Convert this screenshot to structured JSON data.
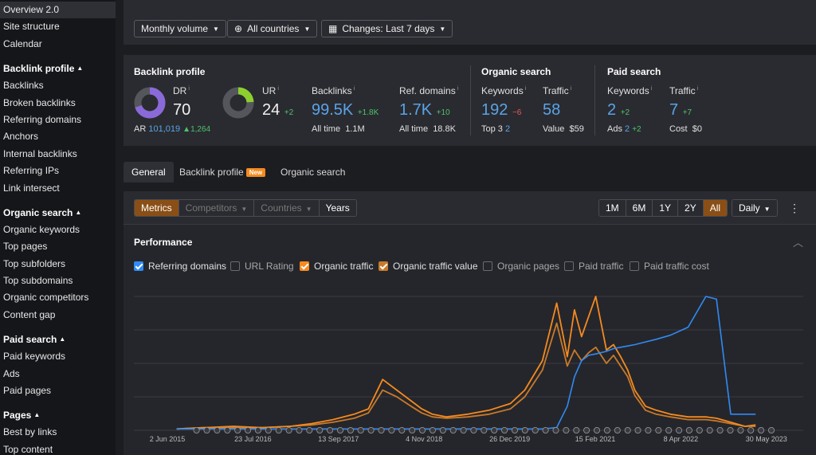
{
  "sidebar": {
    "top_items": [
      {
        "label": "Overview 2.0",
        "active": true
      },
      {
        "label": "Site structure"
      },
      {
        "label": "Calendar"
      }
    ],
    "sections": [
      {
        "title": "Backlink profile",
        "items": [
          "Backlinks",
          "Broken backlinks",
          "Referring domains",
          "Anchors",
          "Internal backlinks",
          "Referring IPs",
          "Link intersect"
        ]
      },
      {
        "title": "Organic search",
        "items": [
          "Organic keywords",
          "Top pages",
          "Top subfolders",
          "Top subdomains",
          "Organic competitors",
          "Content gap"
        ]
      },
      {
        "title": "Paid search",
        "items": [
          "Paid keywords",
          "Ads",
          "Paid pages"
        ]
      },
      {
        "title": "Pages",
        "items": [
          "Best by links",
          "Top content"
        ]
      }
    ]
  },
  "filters": {
    "volume": "Monthly volume",
    "countries": "All countries",
    "changes": "Changes: Last 7 days"
  },
  "backlink_profile": {
    "title": "Backlink profile",
    "dr_label": "DR",
    "dr_value": "70",
    "dr_fill": 0.7,
    "ar_label": "AR",
    "ar_value": "101,019",
    "ar_delta": "▲1,264",
    "ur_label": "UR",
    "ur_value": "24",
    "ur_delta": "+2",
    "ur_fill": 0.24,
    "backlinks_label": "Backlinks",
    "backlinks_value": "99.5K",
    "backlinks_delta": "+1.8K",
    "backlinks_alltime_label": "All time",
    "backlinks_alltime": "1.1M",
    "refdomains_label": "Ref. domains",
    "refdomains_value": "1.7K",
    "refdomains_delta": "+10",
    "refdomains_alltime_label": "All time",
    "refdomains_alltime": "18.8K"
  },
  "organic_search": {
    "title": "Organic search",
    "keywords_label": "Keywords",
    "keywords_value": "192",
    "keywords_delta": "−6",
    "top3_label": "Top 3",
    "top3_value": "2",
    "traffic_label": "Traffic",
    "traffic_value": "58",
    "value_label": "Value",
    "value_value": "$59"
  },
  "paid_search": {
    "title": "Paid search",
    "keywords_label": "Keywords",
    "keywords_value": "2",
    "keywords_delta": "+2",
    "ads_label": "Ads",
    "ads_value": "2",
    "ads_delta": "+2",
    "traffic_label": "Traffic",
    "traffic_value": "7",
    "traffic_delta": "+7",
    "cost_label": "Cost",
    "cost_value": "$0"
  },
  "tabs": {
    "general": "General",
    "backlink_profile": "Backlink profile",
    "new_badge": "New",
    "organic_search": "Organic search"
  },
  "controls": {
    "metrics": "Metrics",
    "competitors": "Competitors",
    "countries": "Countries",
    "years": "Years",
    "ranges": [
      "1M",
      "6M",
      "1Y",
      "2Y",
      "All"
    ],
    "active_range": "All",
    "granularity": "Daily"
  },
  "performance": {
    "title": "Performance",
    "legend": [
      {
        "label": "Referring domains",
        "checked": true,
        "color": "#2f8bf5"
      },
      {
        "label": "URL Rating",
        "checked": false
      },
      {
        "label": "Organic traffic",
        "checked": true,
        "color": "#f58a1f"
      },
      {
        "label": "Organic traffic value",
        "checked": true,
        "color": "#c77a2a"
      },
      {
        "label": "Organic pages",
        "checked": false
      },
      {
        "label": "Paid traffic",
        "checked": false
      },
      {
        "label": "Paid traffic cost",
        "checked": false
      }
    ]
  },
  "chart_data": {
    "type": "line",
    "x_ticks": [
      "2 Jun 2015",
      "23 Jul 2016",
      "13 Sep 2017",
      "4 Nov 2018",
      "26 Dec 2019",
      "15 Feb 2021",
      "8 Apr 2022",
      "30 May 2023"
    ],
    "x": [
      2015.4,
      2015.8,
      2016.2,
      2016.6,
      2017.0,
      2017.3,
      2017.6,
      2017.9,
      2018.1,
      2018.3,
      2018.5,
      2018.7,
      2018.85,
      2019.0,
      2019.2,
      2019.5,
      2019.8,
      2020.1,
      2020.3,
      2020.55,
      2020.75,
      2020.9,
      2021.0,
      2021.1,
      2021.2,
      2021.3,
      2021.45,
      2021.55,
      2021.65,
      2021.75,
      2021.85,
      2022.0,
      2022.15,
      2022.35,
      2022.6,
      2022.85,
      2023.0,
      2023.2,
      2023.4,
      2023.55
    ],
    "series": [
      {
        "name": "Referring domains",
        "color": "#2f8bf5",
        "values": [
          1,
          1,
          1,
          1,
          1,
          1,
          1,
          1,
          1,
          1,
          1,
          1,
          1,
          1,
          1,
          1,
          1,
          1,
          1,
          1,
          2,
          18,
          40,
          52,
          56,
          57,
          59,
          61,
          62,
          63,
          64,
          66,
          68,
          71,
          77,
          100,
          98,
          12,
          12,
          12
        ]
      },
      {
        "name": "Organic traffic",
        "color": "#f58a1f",
        "values": [
          1,
          2,
          3,
          2,
          3,
          5,
          8,
          12,
          16,
          38,
          30,
          22,
          16,
          12,
          10,
          12,
          15,
          20,
          30,
          52,
          95,
          55,
          90,
          70,
          85,
          100,
          60,
          64,
          55,
          45,
          30,
          18,
          15,
          12,
          10,
          10,
          9,
          6,
          3,
          4
        ]
      },
      {
        "name": "Organic traffic value",
        "color": "#c77a2a",
        "values": [
          1,
          2,
          2,
          2,
          3,
          4,
          6,
          9,
          13,
          30,
          25,
          18,
          13,
          10,
          9,
          10,
          12,
          16,
          25,
          45,
          80,
          48,
          60,
          52,
          58,
          62,
          50,
          56,
          48,
          40,
          26,
          15,
          12,
          10,
          8,
          8,
          7,
          5,
          3,
          3
        ]
      }
    ]
  }
}
